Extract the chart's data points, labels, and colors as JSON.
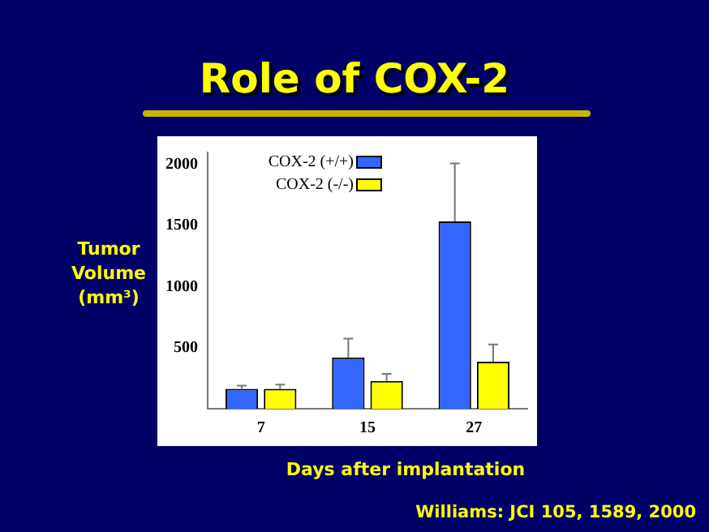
{
  "chart_data": {
    "type": "bar",
    "title": "Role of COX-2",
    "xlabel": "Days after implantation",
    "ylabel": "Tumor Volume (mm³)",
    "categories": [
      "7",
      "15",
      "27"
    ],
    "series": [
      {
        "name": "COX-2 (+/+)",
        "color": "#3366ff",
        "values": [
          162,
          421,
          1535
        ],
        "errors": [
          [
            162,
            189
          ],
          [
            421,
            575
          ],
          [
            1535,
            2010
          ]
        ]
      },
      {
        "name": "COX-2 (-/-)",
        "color": "#ffff00",
        "values": [
          162,
          228,
          386
        ],
        "errors": [
          [
            162,
            197
          ],
          [
            228,
            285
          ],
          [
            386,
            526
          ]
        ]
      }
    ],
    "ylim": [
      0,
      2100
    ],
    "yticks": [
      500,
      1000,
      1500,
      2000
    ],
    "grid": false,
    "legend": "top left",
    "annotations": [
      "Williams: JCI 105, 1589, 2000"
    ]
  }
}
